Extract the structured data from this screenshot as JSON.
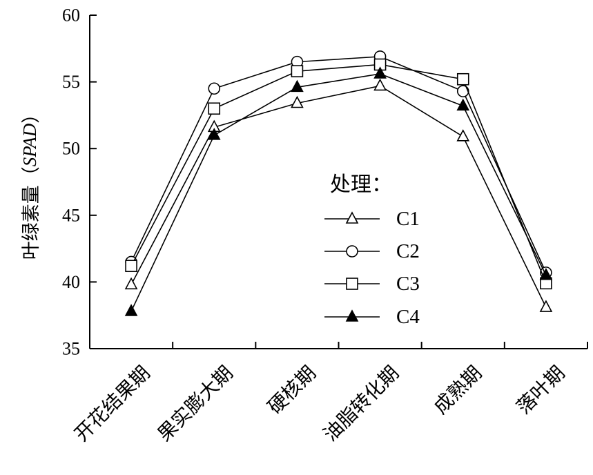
{
  "chart_data": {
    "type": "line",
    "title": "",
    "xlabel": "",
    "ylabel_main": "叶绿素量（",
    "ylabel_italic": "SPAD",
    "ylabel_close": "）",
    "categories": [
      "开花结果期",
      "果实膨大期",
      "硬核期",
      "油脂转化期",
      "成熟期",
      "落叶期"
    ],
    "ylim": [
      35,
      60
    ],
    "yticks": [
      35,
      40,
      45,
      50,
      55,
      60
    ],
    "grid": false,
    "legend": {
      "title": "处理：",
      "placement": "center-right"
    },
    "series": [
      {
        "name": "C1",
        "marker": "triangle-open",
        "values": [
          39.8,
          51.6,
          53.4,
          54.7,
          50.9,
          38.1
        ]
      },
      {
        "name": "C2",
        "marker": "circle-open",
        "values": [
          41.5,
          54.5,
          56.5,
          56.9,
          54.3,
          40.7
        ]
      },
      {
        "name": "C3",
        "marker": "square-open",
        "values": [
          41.2,
          53.0,
          55.8,
          56.3,
          55.2,
          39.9
        ]
      },
      {
        "name": "C4",
        "marker": "triangle-filled",
        "values": [
          37.8,
          51.0,
          54.6,
          55.6,
          53.2,
          40.5
        ]
      }
    ]
  }
}
